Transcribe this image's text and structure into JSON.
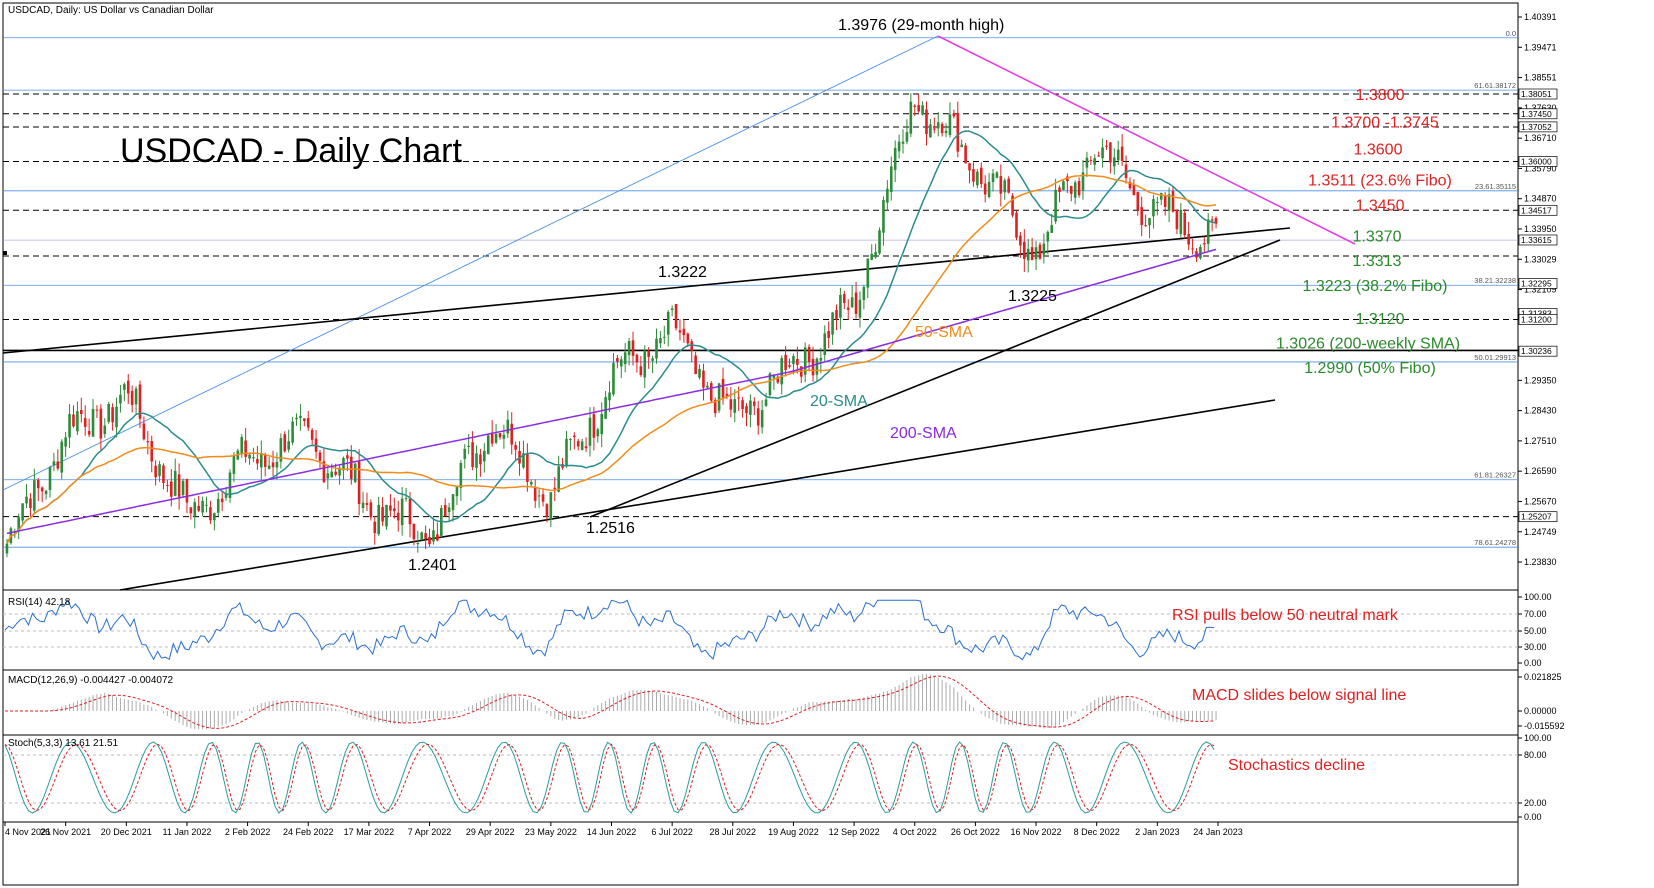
{
  "header": {
    "symbol_text": "USDCAD, Daily:  US Dollar vs Canadian Dollar"
  },
  "chart_title": "USDCAD - Daily Chart",
  "colors": {
    "bull": "#2e8b3a",
    "bear": "#e02020",
    "sma20": "#2a8c8c",
    "sma50": "#f08c1a",
    "sma200": "#8a2be2",
    "resistance": "#e040e0",
    "fib": "#4a90e2",
    "green_label": "#2a8a2a",
    "red_label": "#e02020"
  },
  "chart_data": {
    "type": "candlestick",
    "title": "USDCAD - Daily Chart",
    "price_axis": [
      "1.40391",
      "1.39471",
      "1.38551",
      "1.37630",
      "1.36710",
      "1.35790",
      "1.34870",
      "1.33950",
      "1.33029",
      "1.32109",
      "1.31189",
      "1.30269",
      "1.29350",
      "1.28430",
      "1.27510",
      "1.26590",
      "1.25670",
      "1.24749",
      "1.23830"
    ],
    "price_tags": [
      "1.38051",
      "1.37450",
      "1.37052",
      "1.36000",
      "1.34517",
      "1.33615",
      "1.31383",
      "1.32295",
      "1.31200",
      "1.30236",
      "1.25207"
    ],
    "fib_labels": [
      "0.0",
      "61.61.38172",
      "23.61.35115",
      "38.21.32238",
      "50.01.29913",
      "61.81.26327",
      "78.61.24278"
    ],
    "date_labels": [
      "4 Nov 2021",
      "26 Nov 2021",
      "20 Dec 2021",
      "11 Jan 2022",
      "2 Feb 2022",
      "24 Feb 2022",
      "17 Mar 2022",
      "7 Apr 2022",
      "29 Apr 2022",
      "23 May 2022",
      "14 Jun 2022",
      "6 Jul 2022",
      "28 Jul 2022",
      "19 Aug 2022",
      "12 Sep 2022",
      "4 Oct 2022",
      "26 Oct 2022",
      "16 Nov 2022",
      "8 Dec 2022",
      "2 Jan 2023",
      "24 Jan 2023"
    ],
    "key_points": [
      {
        "date": "4 Nov 2021",
        "close": 1.244
      },
      {
        "date": "26 Nov 2021",
        "close": 1.278
      },
      {
        "date": "20 Dec 2021",
        "close": 1.288
      },
      {
        "date": "11 Jan 2022",
        "close": 1.252
      },
      {
        "date": "2 Feb 2022",
        "close": 1.27
      },
      {
        "date": "24 Feb 2022",
        "close": 1.276
      },
      {
        "date": "17 Mar 2022",
        "close": 1.256
      },
      {
        "date": "7 Apr 2022",
        "close": 1.246
      },
      {
        "date": "29 Apr 2022",
        "close": 1.282
      },
      {
        "date": "23 May 2022",
        "close": 1.258
      },
      {
        "date": "14 Jun 2022",
        "close": 1.295
      },
      {
        "date": "6 Jul 2022",
        "close": 1.308
      },
      {
        "date": "28 Jul 2022",
        "close": 1.281
      },
      {
        "date": "19 Aug 2022",
        "close": 1.298
      },
      {
        "date": "12 Sep 2022",
        "close": 1.315
      },
      {
        "date": "4 Oct 2022",
        "close": 1.38
      },
      {
        "date": "26 Oct 2022",
        "close": 1.36
      },
      {
        "date": "16 Nov 2022",
        "close": 1.332
      },
      {
        "date": "8 Dec 2022",
        "close": 1.365
      },
      {
        "date": "2 Jan 2023",
        "close": 1.344
      },
      {
        "date": "24 Jan 2023",
        "close": 1.337
      }
    ],
    "annotations": {
      "high": "1.3976 (29-month high)",
      "lows": [
        "1.2401",
        "1.2516",
        "1.3222",
        "1.3225"
      ],
      "levels_right": [
        {
          "text": "1.3800",
          "price": 1.3805,
          "color": "red"
        },
        {
          "text": "1.3700 -1.3745",
          "price": 1.3722,
          "color": "red"
        },
        {
          "text": "1.3600",
          "price": 1.364,
          "color": "red"
        },
        {
          "text": "1.3511 (23.6% Fibo)",
          "price": 1.3545,
          "color": "red"
        },
        {
          "text": "1.3450",
          "price": 1.347,
          "color": "red"
        },
        {
          "text": "1.3370",
          "price": 1.3375,
          "color": "green"
        },
        {
          "text": "1.3313",
          "price": 1.33,
          "color": "green"
        },
        {
          "text": "1.3223 (38.2% Fibo)",
          "price": 1.3225,
          "color": "green"
        },
        {
          "text": "1.3120",
          "price": 1.3125,
          "color": "green"
        },
        {
          "text": "1.3026 (200-weekly SMA)",
          "price": 1.305,
          "color": "green"
        },
        {
          "text": "1.2990 (50% Fibo)",
          "price": 1.2975,
          "color": "green"
        }
      ],
      "sma_labels": [
        "20-SMA",
        "50-SMA",
        "200-SMA"
      ]
    }
  },
  "indicators": {
    "rsi": {
      "label": "RSI(14) 42.18",
      "note": "RSI pulls below 50 neutral mark",
      "axis": [
        "100.00",
        "70.00",
        "50.00",
        "30.00",
        "0.00"
      ]
    },
    "macd": {
      "label": "MACD(12,26,9) -0.004427 -0.004072",
      "note": "MACD slides below signal line",
      "axis": [
        "0.021825",
        "0.00000",
        "-0.015592"
      ]
    },
    "stoch": {
      "label": "Stoch(5,3,3) 13.61 21.51",
      "note": "Stochastics decline",
      "axis": [
        "100.00",
        "80.00",
        "20.00",
        "0.00"
      ]
    }
  }
}
